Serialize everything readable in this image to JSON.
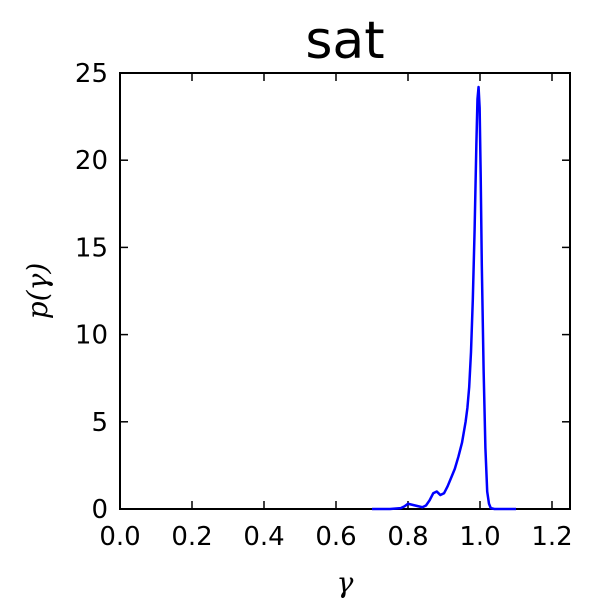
{
  "chart_data": {
    "type": "line",
    "title": "sat",
    "xlabel": "γ",
    "ylabel": "p(γ)",
    "xlim": [
      0.0,
      1.25
    ],
    "ylim": [
      0,
      25
    ],
    "xticks": [
      0.0,
      0.2,
      0.4,
      0.6,
      0.8,
      1.0,
      1.2
    ],
    "xtick_labels": [
      "0.0",
      "0.2",
      "0.4",
      "0.6",
      "0.8",
      "1.0",
      "1.2"
    ],
    "yticks": [
      0,
      5,
      10,
      15,
      20,
      25
    ],
    "ytick_labels": [
      "0",
      "5",
      "10",
      "15",
      "20",
      "25"
    ],
    "grid": false,
    "series": [
      {
        "color": "#0000ff",
        "x": [
          0.7,
          0.75,
          0.78,
          0.79,
          0.8,
          0.81,
          0.82,
          0.83,
          0.84,
          0.85,
          0.86,
          0.87,
          0.88,
          0.89,
          0.9,
          0.91,
          0.92,
          0.93,
          0.94,
          0.95,
          0.96,
          0.965,
          0.97,
          0.975,
          0.98,
          0.985,
          0.99,
          0.993,
          0.996,
          0.999,
          1.002,
          1.005,
          1.01,
          1.015,
          1.02,
          1.025,
          1.03,
          1.04,
          1.05,
          1.07,
          1.1
        ],
        "y": [
          0,
          0,
          0.05,
          0.15,
          0.3,
          0.25,
          0.2,
          0.15,
          0.1,
          0.2,
          0.5,
          0.9,
          1.0,
          0.8,
          0.9,
          1.3,
          1.8,
          2.3,
          3.0,
          3.8,
          5.0,
          5.8,
          7.0,
          9.0,
          12.0,
          16.0,
          21.0,
          23.5,
          24.2,
          23.0,
          19.0,
          14.0,
          8.0,
          3.5,
          1.0,
          0.3,
          0.05,
          0,
          0,
          0,
          0
        ]
      }
    ]
  }
}
